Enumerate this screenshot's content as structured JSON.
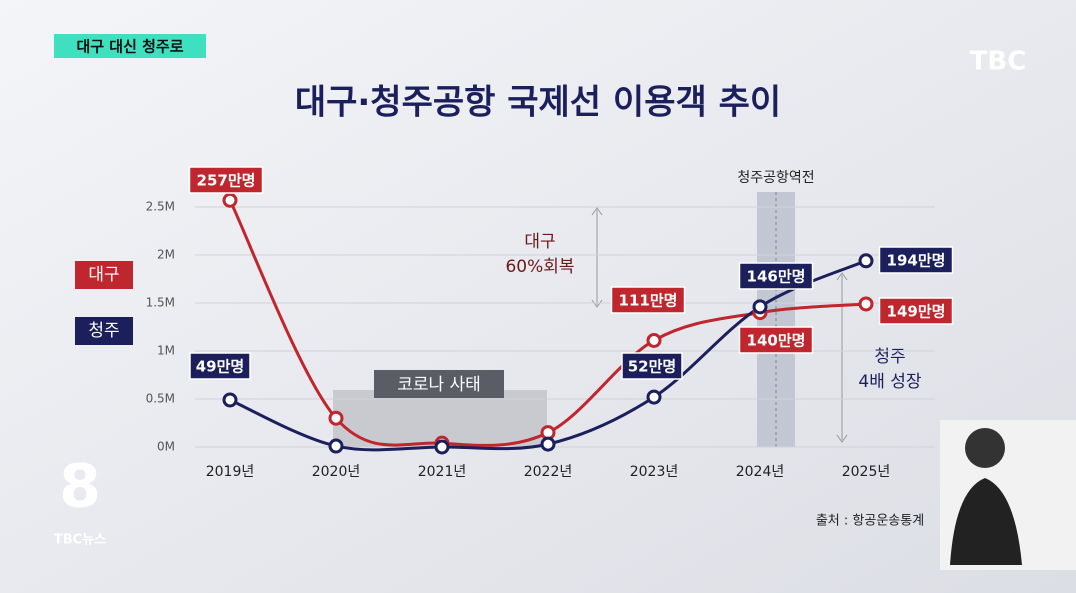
{
  "chart_data": {
    "type": "line",
    "badge": "대구 대신 청주로",
    "logo": "TBC",
    "title": "대구·청주공항 국제선 이용객 추이",
    "categories": [
      "2019년",
      "2020년",
      "2021년",
      "2022년",
      "2023년",
      "2024년",
      "2025년"
    ],
    "series": [
      {
        "name": "대구",
        "color": "#c0262d",
        "values": [
          2570000,
          300000,
          40000,
          150000,
          1110000,
          1400000,
          1490000
        ],
        "value_labels": [
          "257만명",
          null,
          null,
          null,
          "111만명",
          "140만명",
          "149만명"
        ]
      },
      {
        "name": "청주",
        "color": "#1b1f5c",
        "values": [
          490000,
          10000,
          0,
          30000,
          520000,
          1460000,
          1940000
        ],
        "value_labels": [
          "49만명",
          null,
          null,
          null,
          "52만명",
          "146만명",
          "194만명"
        ]
      }
    ],
    "ylim": [
      0,
      2500000
    ],
    "yticks": [
      {
        "value": 0,
        "label": "0M"
      },
      {
        "value": 500000,
        "label": "0.5M"
      },
      {
        "value": 1000000,
        "label": "1M"
      },
      {
        "value": 1500000,
        "label": "1.5M"
      },
      {
        "value": 2000000,
        "label": "2M"
      },
      {
        "value": 2500000,
        "label": "2.5M"
      }
    ],
    "grid": true,
    "annotations": [
      "대구",
      "60%회복",
      "코로나 사태",
      "청주공항역전",
      "청주",
      "4배 성장"
    ],
    "source": "출처 : 항공운송통계",
    "footer": "TBC뉴스",
    "channel": "8"
  }
}
